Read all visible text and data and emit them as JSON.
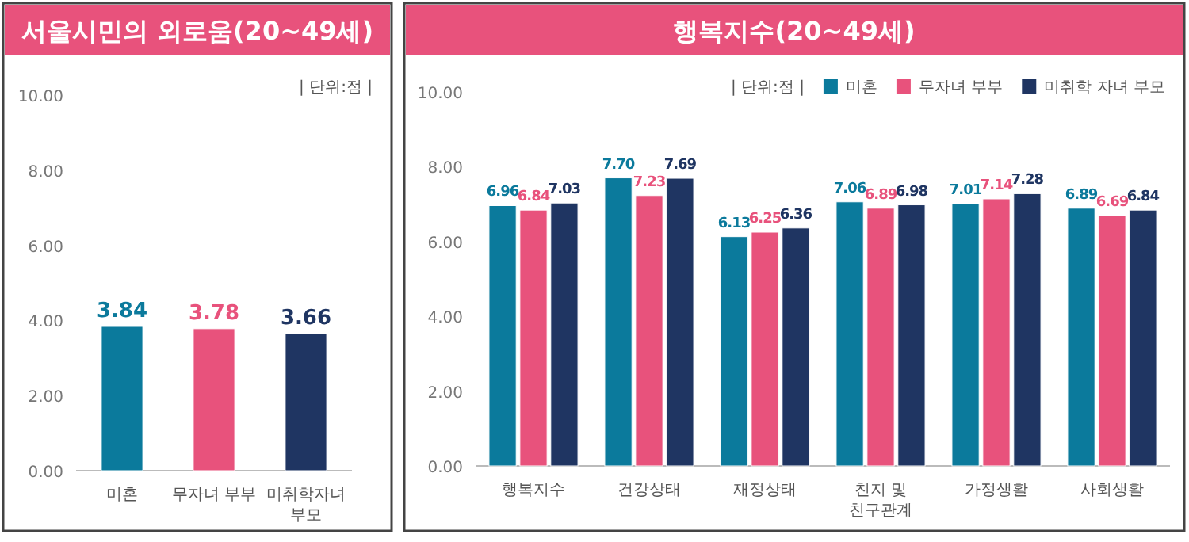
{
  "chart_data": [
    {
      "type": "bar",
      "title": "서울시민의 외로움(20~49세)",
      "annotations": [
        "| 단위:점 |"
      ],
      "categories": [
        "미혼",
        "무자녀 부부",
        "미취학자녀\n부모"
      ],
      "values": [
        3.84,
        3.78,
        3.66
      ],
      "colors": [
        "#0b7a9c",
        "#e8527c",
        "#1f3562"
      ],
      "value_labels": [
        "3.84",
        "3.78",
        "3.66"
      ],
      "ylim": [
        0,
        10
      ],
      "yticks": [
        {
          "value": 0,
          "label": "0.00"
        },
        {
          "value": 2,
          "label": "2.00"
        },
        {
          "value": 4,
          "label": "4.00"
        },
        {
          "value": 6,
          "label": "6.00"
        },
        {
          "value": 8,
          "label": "8.00"
        },
        {
          "value": 10,
          "label": "10.00"
        }
      ],
      "grid": false,
      "legend": false
    },
    {
      "type": "bar",
      "title": "행복지수(20~49세)",
      "annotations": [
        "| 단위:점 |"
      ],
      "categories": [
        "행복지수",
        "건강상태",
        "재정상태",
        "친지 및\n친구관계",
        "가정생활",
        "사회생활"
      ],
      "series": [
        {
          "name": "미혼",
          "color": "#0b7a9c",
          "values": [
            6.96,
            7.7,
            6.13,
            7.06,
            7.01,
            6.89
          ],
          "value_labels": [
            "6.96",
            "7.70",
            "6.13",
            "7.06",
            "7.01",
            "6.89"
          ]
        },
        {
          "name": "무자녀 부부",
          "color": "#e8527c",
          "values": [
            6.84,
            7.23,
            6.25,
            6.89,
            7.14,
            6.69
          ],
          "value_labels": [
            "6.84",
            "7.23",
            "6.25",
            "6.89",
            "7.14",
            "6.69"
          ]
        },
        {
          "name": "미취학 자녀 부모",
          "color": "#1f3562",
          "values": [
            7.03,
            7.69,
            6.36,
            6.98,
            7.28,
            6.84
          ],
          "value_labels": [
            "7.03",
            "7.69",
            "6.36",
            "6.98",
            "7.28",
            "6.84"
          ]
        }
      ],
      "ylim": [
        0,
        10
      ],
      "yticks": [
        {
          "value": 0,
          "label": "0.00"
        },
        {
          "value": 2,
          "label": "2.00"
        },
        {
          "value": 4,
          "label": "4.00"
        },
        {
          "value": 6,
          "label": "6.00"
        },
        {
          "value": 8,
          "label": "8.00"
        },
        {
          "value": 10,
          "label": "10.00"
        }
      ],
      "grid": false,
      "legend": "top right"
    }
  ]
}
